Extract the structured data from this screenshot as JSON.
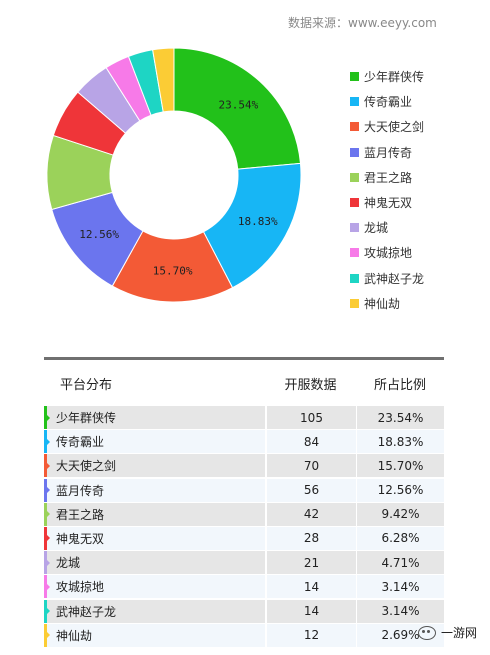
{
  "source_label": "数据来源：www.eeyy.com",
  "table": {
    "headers": [
      "平台分布",
      "开服数据",
      "所占比例"
    ]
  },
  "watermark": {
    "text": "一游网",
    "icon": "wechat-icon"
  },
  "chart_data": {
    "type": "pie",
    "donut": true,
    "categories": [
      "少年群侠传",
      "传奇霸业",
      "大天使之剑",
      "蓝月传奇",
      "君王之路",
      "神鬼无双",
      "龙城",
      "攻城掠地",
      "武神赵子龙",
      "神仙劫"
    ],
    "values": [
      105,
      84,
      70,
      56,
      42,
      28,
      21,
      14,
      14,
      12
    ],
    "percent_labels": [
      "23.54%",
      "18.83%",
      "15.70%",
      "12.56%",
      "9.42%",
      "6.28%",
      "4.71%",
      "3.14%",
      "3.14%",
      "2.69%"
    ],
    "slice_labels_shown": [
      "23.54%",
      "18.83%",
      "15.70%",
      "12.56%"
    ],
    "colors": [
      "#22c11a",
      "#17b6f5",
      "#f35a36",
      "#6b75ee",
      "#9bd25a",
      "#ef3539",
      "#b8a4e6",
      "#f77ae8",
      "#1ed5c4",
      "#fbcc35"
    ],
    "legend_position": "right"
  }
}
